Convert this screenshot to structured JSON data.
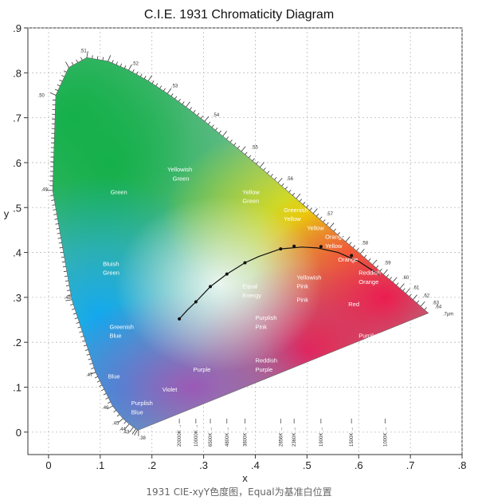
{
  "chart_data": {
    "type": "scatter",
    "title": "C.I.E. 1931 Chromaticity Diagram",
    "xlabel": "x",
    "ylabel": "y",
    "xlim": [
      -0.04,
      0.8
    ],
    "ylim": [
      -0.05,
      0.9
    ],
    "xticks": [
      {
        "v": 0,
        "label": "0"
      },
      {
        "v": 0.1,
        "label": ".1"
      },
      {
        "v": 0.2,
        "label": ".2"
      },
      {
        "v": 0.3,
        "label": ".3"
      },
      {
        "v": 0.4,
        "label": ".4"
      },
      {
        "v": 0.5,
        "label": ".5"
      },
      {
        "v": 0.6,
        "label": ".6"
      },
      {
        "v": 0.7,
        "label": ".7"
      },
      {
        "v": 0.8,
        "label": ".8"
      }
    ],
    "yticks": [
      {
        "v": 0,
        "label": "0"
      },
      {
        "v": 0.1,
        "label": ".1"
      },
      {
        "v": 0.2,
        "label": ".2"
      },
      {
        "v": 0.3,
        "label": ".3"
      },
      {
        "v": 0.4,
        "label": ".4"
      },
      {
        "v": 0.5,
        "label": ".5"
      },
      {
        "v": 0.6,
        "label": ".6"
      },
      {
        "v": 0.7,
        "label": ".7"
      },
      {
        "v": 0.8,
        "label": ".8"
      },
      {
        "v": 0.9,
        "label": ".9"
      }
    ],
    "grid": true,
    "spectral_locus": [
      [
        0.175,
        0.005
      ],
      [
        0.174,
        0.005
      ],
      [
        0.172,
        0.005
      ],
      [
        0.169,
        0.007
      ],
      [
        0.164,
        0.011
      ],
      [
        0.156,
        0.018
      ],
      [
        0.144,
        0.03
      ],
      [
        0.124,
        0.058
      ],
      [
        0.091,
        0.133
      ],
      [
        0.045,
        0.295
      ],
      [
        0.008,
        0.538
      ],
      [
        0.014,
        0.75
      ],
      [
        0.039,
        0.812
      ],
      [
        0.074,
        0.834
      ],
      [
        0.115,
        0.826
      ],
      [
        0.155,
        0.806
      ],
      [
        0.193,
        0.782
      ],
      [
        0.23,
        0.754
      ],
      [
        0.266,
        0.724
      ],
      [
        0.302,
        0.692
      ],
      [
        0.337,
        0.659
      ],
      [
        0.373,
        0.625
      ],
      [
        0.409,
        0.59
      ],
      [
        0.444,
        0.555
      ],
      [
        0.479,
        0.52
      ],
      [
        0.512,
        0.487
      ],
      [
        0.544,
        0.455
      ],
      [
        0.575,
        0.424
      ],
      [
        0.603,
        0.397
      ],
      [
        0.627,
        0.373
      ],
      [
        0.648,
        0.351
      ],
      [
        0.666,
        0.334
      ],
      [
        0.68,
        0.32
      ],
      [
        0.691,
        0.309
      ],
      [
        0.705,
        0.295
      ],
      [
        0.72,
        0.28
      ],
      [
        0.735,
        0.265
      ]
    ],
    "wavelength_labels": [
      {
        "x": 0.172,
        "y": 0.005,
        "label": ".38"
      },
      {
        "x": 0.165,
        "y": 0.008,
        "label": ".43"
      },
      {
        "x": 0.158,
        "y": 0.014,
        "label": ".44"
      },
      {
        "x": 0.145,
        "y": 0.027,
        "label": ".45"
      },
      {
        "x": 0.125,
        "y": 0.055,
        "label": ".46"
      },
      {
        "x": 0.094,
        "y": 0.128,
        "label": ".47"
      },
      {
        "x": 0.055,
        "y": 0.3,
        "label": ".48"
      },
      {
        "x": 0.01,
        "y": 0.54,
        "label": ".49"
      },
      {
        "x": 0.004,
        "y": 0.75,
        "label": ".50"
      },
      {
        "x": 0.07,
        "y": 0.832,
        "label": ".51"
      },
      {
        "x": 0.149,
        "y": 0.807,
        "label": ".52"
      },
      {
        "x": 0.225,
        "y": 0.757,
        "label": ".53"
      },
      {
        "x": 0.305,
        "y": 0.692,
        "label": ".54"
      },
      {
        "x": 0.38,
        "y": 0.62,
        "label": ".55"
      },
      {
        "x": 0.448,
        "y": 0.55,
        "label": ".56"
      },
      {
        "x": 0.525,
        "y": 0.472,
        "label": ".57"
      },
      {
        "x": 0.593,
        "y": 0.407,
        "label": ".58"
      },
      {
        "x": 0.637,
        "y": 0.363,
        "label": ".59"
      },
      {
        "x": 0.672,
        "y": 0.33,
        "label": ".60"
      },
      {
        "x": 0.692,
        "y": 0.308,
        "label": ".61"
      },
      {
        "x": 0.712,
        "y": 0.29,
        "label": ".62"
      },
      {
        "x": 0.73,
        "y": 0.274,
        "label": ".63"
      },
      {
        "x": 0.735,
        "y": 0.265,
        "label": ".64"
      },
      {
        "x": 0.735,
        "y": 0.265,
        "label": ".7μm"
      }
    ],
    "planckian_locus": [
      [
        0.253,
        0.252
      ],
      [
        0.268,
        0.271
      ],
      [
        0.285,
        0.29
      ],
      [
        0.313,
        0.324
      ],
      [
        0.345,
        0.352
      ],
      [
        0.38,
        0.377
      ],
      [
        0.407,
        0.391
      ],
      [
        0.449,
        0.408
      ],
      [
        0.49,
        0.412
      ],
      [
        0.52,
        0.41
      ],
      [
        0.56,
        0.4
      ],
      [
        0.6,
        0.38
      ],
      [
        0.64,
        0.35
      ]
    ],
    "temperature_points": [
      {
        "x": 0.253,
        "y": 0.252,
        "label": "20000K"
      },
      {
        "x": 0.285,
        "y": 0.29,
        "label": "10000K"
      },
      {
        "x": 0.313,
        "y": 0.324,
        "label": "6500K"
      },
      {
        "x": 0.345,
        "y": 0.352,
        "label": "4800K"
      },
      {
        "x": 0.38,
        "y": 0.377,
        "label": "3800K"
      },
      {
        "x": 0.449,
        "y": 0.408,
        "label": "2856K"
      },
      {
        "x": 0.475,
        "y": 0.414,
        "label": "2360K"
      },
      {
        "x": 0.527,
        "y": 0.413,
        "label": "1900K"
      },
      {
        "x": 0.586,
        "y": 0.393,
        "label": "1500K"
      },
      {
        "x": 0.651,
        "y": 0.34,
        "label": "1000K"
      }
    ],
    "region_labels": [
      {
        "x": 0.12,
        "y": 0.53,
        "text": "Green"
      },
      {
        "x": 0.23,
        "y": 0.58,
        "text": "Yellowish"
      },
      {
        "x": 0.24,
        "y": 0.56,
        "text": "Green"
      },
      {
        "x": 0.375,
        "y": 0.53,
        "text": "Yellow"
      },
      {
        "x": 0.375,
        "y": 0.51,
        "text": "Green"
      },
      {
        "x": 0.455,
        "y": 0.49,
        "text": "Greenish"
      },
      {
        "x": 0.455,
        "y": 0.47,
        "text": "Yellow"
      },
      {
        "x": 0.5,
        "y": 0.45,
        "text": "Yellow"
      },
      {
        "x": 0.535,
        "y": 0.43,
        "text": "Orange"
      },
      {
        "x": 0.535,
        "y": 0.41,
        "text": "Yellow"
      },
      {
        "x": 0.56,
        "y": 0.38,
        "text": "Orange"
      },
      {
        "x": 0.6,
        "y": 0.35,
        "text": "Reddish"
      },
      {
        "x": 0.6,
        "y": 0.33,
        "text": "Orange"
      },
      {
        "x": 0.48,
        "y": 0.34,
        "text": "Yellowish"
      },
      {
        "x": 0.48,
        "y": 0.32,
        "text": "Pink"
      },
      {
        "x": 0.48,
        "y": 0.29,
        "text": "Pink"
      },
      {
        "x": 0.58,
        "y": 0.28,
        "text": "Red"
      },
      {
        "x": 0.105,
        "y": 0.37,
        "text": "Bluish"
      },
      {
        "x": 0.105,
        "y": 0.35,
        "text": "Green"
      },
      {
        "x": 0.375,
        "y": 0.32,
        "text": "Equal"
      },
      {
        "x": 0.375,
        "y": 0.3,
        "text": "Energy"
      },
      {
        "x": 0.4,
        "y": 0.25,
        "text": "Purplish"
      },
      {
        "x": 0.4,
        "y": 0.23,
        "text": "Pink"
      },
      {
        "x": 0.118,
        "y": 0.23,
        "text": "Greenish"
      },
      {
        "x": 0.118,
        "y": 0.21,
        "text": "Blue"
      },
      {
        "x": 0.115,
        "y": 0.12,
        "text": "Blue"
      },
      {
        "x": 0.28,
        "y": 0.135,
        "text": "Purple"
      },
      {
        "x": 0.4,
        "y": 0.155,
        "text": "Reddish"
      },
      {
        "x": 0.4,
        "y": 0.135,
        "text": "Purple"
      },
      {
        "x": 0.6,
        "y": 0.21,
        "text": "Purplish"
      },
      {
        "x": 0.6,
        "y": 0.19,
        "text": "Red"
      },
      {
        "x": 0.22,
        "y": 0.09,
        "text": "Violet"
      },
      {
        "x": 0.16,
        "y": 0.06,
        "text": "Purplish"
      },
      {
        "x": 0.16,
        "y": 0.04,
        "text": "Blue"
      }
    ],
    "colors": {
      "green": "#22b14c",
      "yellow": "#f3e600",
      "orange": "#f7941d",
      "red": "#ed1c24",
      "blue": "#00aeef",
      "purple": "#8e44ad",
      "white": "#ffffff"
    }
  },
  "caption": "1931 CIE-xyY色度图，Equal为基准白位置"
}
